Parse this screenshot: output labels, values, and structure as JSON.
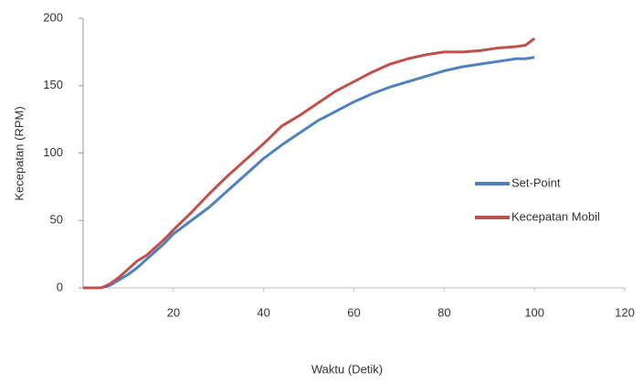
{
  "chart_data": {
    "type": "line",
    "x_label": "Waktu (Detik)",
    "y_label": "Kecepatan (RPM)",
    "xlim": [
      0,
      120
    ],
    "xticks": [
      20,
      40,
      60,
      80,
      100,
      120
    ],
    "ylim": [
      0,
      200
    ],
    "yticks": [
      0,
      50,
      100,
      150,
      200
    ],
    "legend": "right",
    "x": [
      0,
      2,
      4,
      6,
      8,
      10,
      12,
      14,
      16,
      18,
      20,
      24,
      28,
      32,
      36,
      40,
      44,
      48,
      52,
      56,
      60,
      64,
      68,
      72,
      76,
      80,
      84,
      88,
      92,
      96,
      98,
      100
    ],
    "series": [
      {
        "name": "Set-Point",
        "color": "#4f81bd",
        "values": [
          0,
          0,
          0,
          2,
          6,
          10,
          15,
          21,
          27,
          33,
          40,
          50,
          60,
          72,
          84,
          96,
          106,
          115,
          124,
          131,
          138,
          144,
          149,
          153,
          157,
          161,
          164,
          166,
          168,
          170,
          170,
          171
        ]
      },
      {
        "name": "Kecepatan Mobil",
        "color": "#c0504d",
        "values": [
          0,
          0,
          0,
          3,
          8,
          14,
          20,
          24,
          30,
          36,
          43,
          56,
          70,
          83,
          95,
          107,
          120,
          128,
          137,
          146,
          153,
          160,
          166,
          170,
          173,
          175,
          175,
          176,
          178,
          179,
          180,
          185
        ]
      }
    ]
  }
}
